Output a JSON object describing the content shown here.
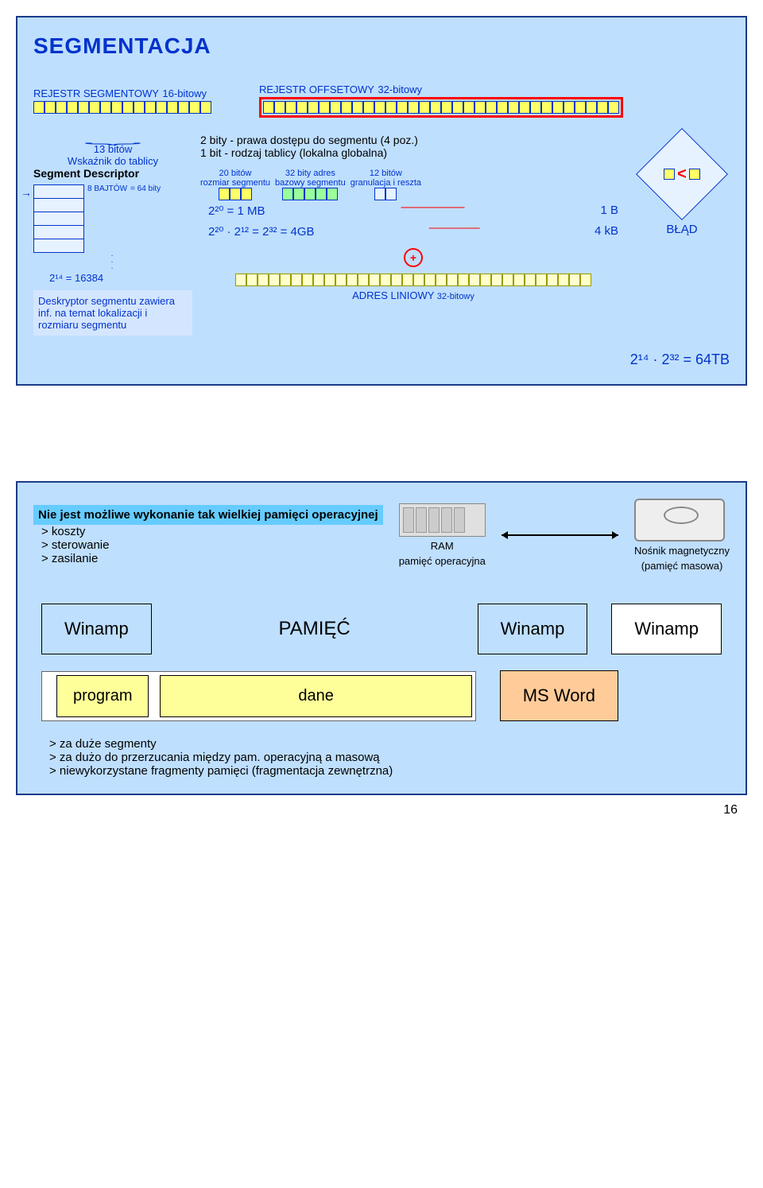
{
  "panel1": {
    "title": "SEGMENTACJA",
    "reg_segment_label": "REJESTR SEGMENTOWY",
    "reg_segment_bits": "16-bitowy",
    "reg_segment_bitcount": 16,
    "reg_offset_label": "REJESTR OFFSETOWY",
    "reg_offset_bits": "32-bitowy",
    "reg_offset_bitcount": 32,
    "brace_bits": "13 bitów",
    "pointer_label": "Wskaźnik do tablicy",
    "seg_desc": "Segment Descriptor",
    "table_bytes": "8 BAJTÓW",
    "table_eq": "= 64 bity",
    "table_count": "2¹⁴ = 16384",
    "descriptor_text": "Deskryptor segmentu zawiera inf. na temat lokalizacji i rozmiaru segmentu",
    "access_line1": "2 bity - prawa dostępu do segmentu (4 poz.)",
    "access_line2": "1 bit - rodzaj tablicy (lokalna globalna)",
    "field1_top": "20 bitów",
    "field1_bot": "rozmiar segmentu",
    "field2_top": "32 bity adres",
    "field2_bot": "bazowy segmentu",
    "field3_top": "12 bitów",
    "field3_bot": "granulacja i reszta",
    "calc1": "2²⁰ = 1 MB",
    "calc1r": "1 B",
    "calc2": "2²⁰ · 2¹² = 2³² = 4GB",
    "calc2r": "4 kB",
    "addr_label": "ADRES LINIOWY",
    "addr_bits": "32-bitowy",
    "addr_bitcount": 32,
    "error_label": "BŁĄD",
    "total": "2¹⁴ · 2³² = 64TB"
  },
  "panel2": {
    "note_title": "Nie jest możliwe wykonanie tak wielkiej pamięci operacyjnej",
    "note_items": [
      "> koszty",
      "> sterowanie",
      "> zasilanie"
    ],
    "ram_label1": "RAM",
    "ram_label2": "pamięć operacyjna",
    "disk_label1": "Nośnik magnetyczny",
    "disk_label2": "(pamięć masowa)",
    "winamp": "Winamp",
    "pamiec": "PAMIĘĆ",
    "program": "program",
    "dane": "dane",
    "msword": "MS Word",
    "footer": [
      "> za duże segmenty",
      "> za dużo do przerzucania między pam. operacyjną a masową",
      "> niewykorzystane fragmenty pamięci (fragmentacja zewnętrzna)"
    ]
  },
  "page_num": "16",
  "colors": {
    "panel_bg": "#bfdfff",
    "panel_border": "#1a3a8a",
    "text_blue": "#0033cc",
    "bit_yellow": "#ffff66",
    "bit_green": "#99ff99",
    "bit_pale": "#ffffcc",
    "red": "#ff0000",
    "cyan_hl": "#66ccff",
    "block_yellow": "#ffff99",
    "block_orange": "#ffcc99"
  }
}
